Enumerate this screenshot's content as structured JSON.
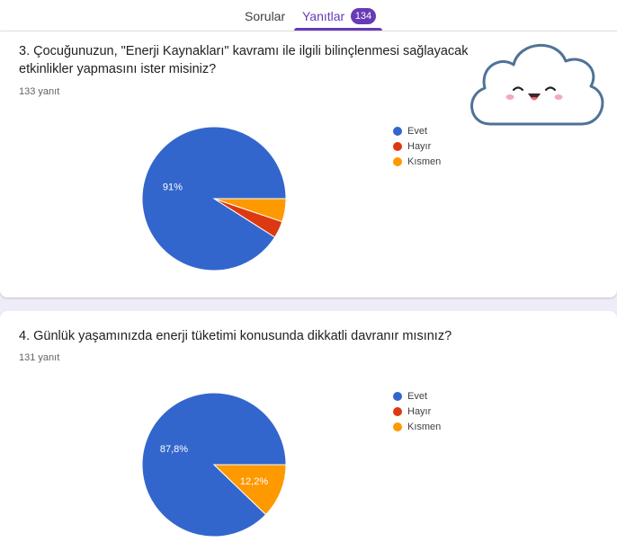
{
  "tabs": {
    "questions": "Sorular",
    "responses": "Yanıtlar",
    "responses_count": "134"
  },
  "colors": {
    "evet": "#3366cc",
    "hayir": "#dc3912",
    "kismen": "#ff9900",
    "accent": "#673ab7"
  },
  "questions": [
    {
      "title": "3. Çocuğunuzun, \"Enerji Kaynakları\" kavramı ile ilgili bilinçlenmesi sağlayacak etkinlikler yapmasını ister misiniz?",
      "count": "133 yanıt"
    },
    {
      "title": "4. Günlük yaşamınızda enerji tüketimi konusunda dikkatli davranır mısınız?",
      "count": "131 yanıt"
    }
  ],
  "chart_data": [
    {
      "type": "pie",
      "title": "3. Çocuğunuzun, \"Enerji Kaynakları\" kavramı ile ilgili bilinçlenmesi sağlayacak etkinlikler yapmasını ister misiniz?",
      "categories": [
        "Evet",
        "Hayır",
        "Kısmen"
      ],
      "values": [
        91,
        3.8,
        5.2
      ],
      "data_labels": [
        "91%",
        "",
        ""
      ],
      "legend": "right"
    },
    {
      "type": "pie",
      "title": "4. Günlük yaşamınızda enerji tüketimi konusunda dikkatli davranır mısınız?",
      "categories": [
        "Evet",
        "Hayır",
        "Kısmen"
      ],
      "values": [
        87.8,
        0,
        12.2
      ],
      "data_labels": [
        "87,8%",
        "",
        "12,2%"
      ],
      "legend": "right"
    }
  ]
}
